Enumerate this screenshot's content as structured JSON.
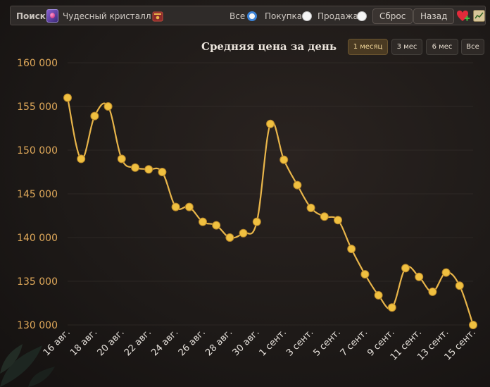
{
  "toolbar": {
    "search_label": "Поиск:",
    "item_name": "Чудесный кристалл",
    "item_icon": "crystal-icon",
    "book_icon": "book-icon",
    "filter_all": "Все",
    "filter_buy": "Покупка",
    "filter_sell": "Продажа",
    "selected_filter": "Все",
    "reset_label": "Сброс",
    "back_label": "Назад",
    "heart_icon": "heart-plus-icon",
    "chart_icon": "line-chart-icon"
  },
  "periods": [
    {
      "label": "1 месяц",
      "active": true
    },
    {
      "label": "3 мес",
      "active": false
    },
    {
      "label": "6 мес",
      "active": false
    },
    {
      "label": "Все",
      "active": false
    }
  ],
  "colors": {
    "line": "#e8b54a",
    "point": "#f0c040",
    "y_tick": "#e0a95a",
    "x_tick": "#e7e2dc",
    "grid": "#3a3430"
  },
  "chart_data": {
    "type": "line",
    "title": "Средняя цена за день",
    "ylim": [
      130000,
      160000
    ],
    "y_ticks": [
      "160 000",
      "155 000",
      "150 000",
      "145 000",
      "140 000",
      "135 000",
      "130 000"
    ],
    "y_tick_values": [
      160000,
      155000,
      150000,
      145000,
      140000,
      135000,
      130000
    ],
    "x_ticks": [
      "16 авг.",
      "18 авг.",
      "20 авг.",
      "22 авг.",
      "24 авг.",
      "26 авг.",
      "28 авг.",
      "30 авг.",
      "1 сент.",
      "3 сент.",
      "5 сент.",
      "7 сент.",
      "9 сент.",
      "11 сент.",
      "13 сент.",
      "15 сент."
    ],
    "x": [
      "16 авг.",
      "17 авг.",
      "18 авг.",
      "19 авг.",
      "20 авг.",
      "21 авг.",
      "22 авг.",
      "23 авг.",
      "24 авг.",
      "25 авг.",
      "26 авг.",
      "27 авг.",
      "28 авг.",
      "29 авг.",
      "30 авг.",
      "31 авг.",
      "1 сент.",
      "2 сент.",
      "3 сент.",
      "4 сент.",
      "5 сент.",
      "6 сент.",
      "7 сент.",
      "8 сент.",
      "9 сент.",
      "10 сент.",
      "11 сент.",
      "12 сент.",
      "13 сент.",
      "14 сент.",
      "15 сент."
    ],
    "values": [
      156000,
      149000,
      153900,
      155000,
      149000,
      148000,
      147800,
      147500,
      143500,
      143500,
      141800,
      141400,
      140000,
      140500,
      141800,
      153000,
      148900,
      146000,
      143400,
      142400,
      142000,
      138700,
      135800,
      133400,
      132000,
      136500,
      135500,
      133800,
      136000,
      134500,
      130000
    ]
  }
}
